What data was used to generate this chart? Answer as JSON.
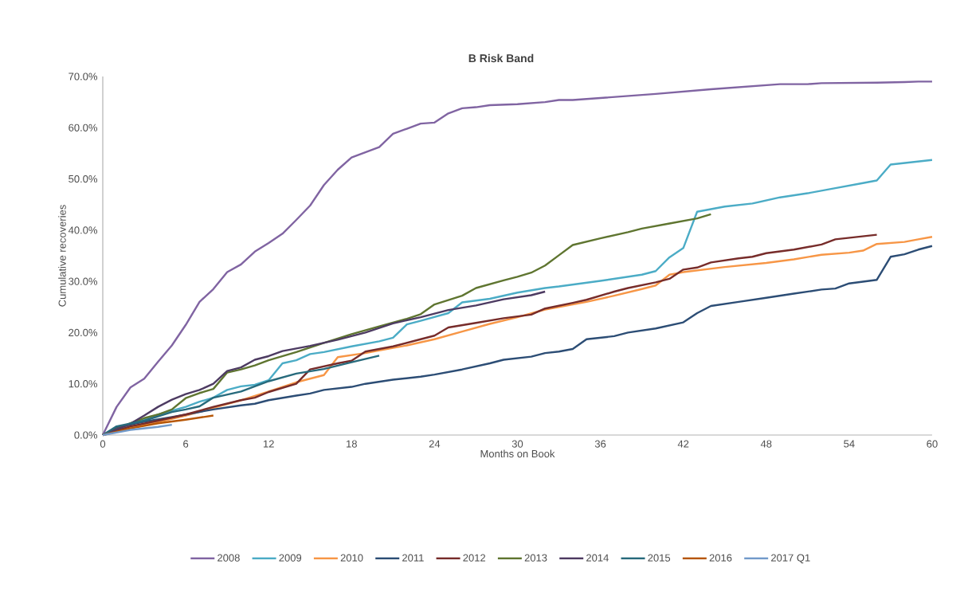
{
  "chart_data": {
    "type": "line",
    "title": "B Risk Band",
    "xlabel": "Months on Book",
    "ylabel": "Cumulative recoveries",
    "xlim": [
      0,
      60
    ],
    "ylim": [
      0,
      70
    ],
    "xticks": [
      0,
      6,
      12,
      18,
      24,
      30,
      36,
      42,
      48,
      54,
      60
    ],
    "yticks": [
      {
        "value": 0,
        "label": "0.0%"
      },
      {
        "value": 10,
        "label": "10.0%"
      },
      {
        "value": 20,
        "label": "20.0%"
      },
      {
        "value": 30,
        "label": "30.0%"
      },
      {
        "value": 40,
        "label": "40.0%"
      },
      {
        "value": 50,
        "label": "50.0%"
      },
      {
        "value": 60,
        "label": "60.0%"
      },
      {
        "value": 70,
        "label": "70.0%"
      }
    ],
    "legend": "bottom",
    "series": [
      {
        "name": "2008",
        "color": "#8064a2",
        "x": [
          0,
          1,
          2,
          3,
          4,
          5,
          6,
          7,
          8,
          9,
          10,
          11,
          12,
          13,
          14,
          15,
          16,
          17,
          18,
          19,
          20,
          21,
          22,
          23,
          24,
          25,
          26,
          27,
          28,
          30,
          32,
          33,
          34,
          40,
          44,
          49,
          51,
          52,
          56,
          58,
          59,
          60
        ],
        "values": [
          0,
          5.5,
          9.3,
          11,
          14.3,
          17.5,
          21.5,
          26,
          28.5,
          31.8,
          33.3,
          35.8,
          37.5,
          39.3,
          42,
          44.8,
          48.8,
          51.8,
          54.2,
          55.2,
          56.2,
          58.8,
          59.8,
          60.8,
          61,
          62.8,
          63.8,
          64,
          64.4,
          64.6,
          65,
          65.4,
          65.4,
          66.6,
          67.5,
          68.5,
          68.5,
          68.7,
          68.8,
          68.9,
          69,
          69
        ]
      },
      {
        "name": "2009",
        "color": "#4bacc6",
        "x": [
          0,
          2,
          4,
          6,
          7,
          8,
          9,
          10,
          11,
          12,
          13,
          14,
          15,
          16,
          18,
          20,
          21,
          22,
          23,
          25,
          26,
          28,
          30,
          32,
          33,
          36,
          39,
          40,
          41,
          42,
          43,
          45,
          47,
          49,
          51,
          53,
          55,
          56,
          57,
          60
        ],
        "values": [
          0,
          2,
          4,
          5.5,
          6.5,
          7.3,
          8.8,
          9.5,
          9.8,
          10.7,
          14,
          14.6,
          15.8,
          16.2,
          17.3,
          18.3,
          19,
          21.6,
          22.3,
          23.8,
          25.9,
          26.6,
          27.8,
          28.7,
          29,
          30.1,
          31.3,
          32,
          34.7,
          36.5,
          43.6,
          44.6,
          45.2,
          46.4,
          47.2,
          48.2,
          49.2,
          49.7,
          52.8,
          53.7
        ]
      },
      {
        "name": "2010",
        "color": "#f79646",
        "x": [
          0,
          2,
          4,
          6,
          8,
          10,
          12,
          14,
          16,
          17,
          19,
          20,
          22,
          24,
          26,
          28,
          30,
          32,
          34,
          35,
          37,
          39,
          40,
          41,
          42,
          45,
          48,
          50,
          52,
          54,
          55,
          56,
          58,
          59,
          60
        ],
        "values": [
          0,
          1.5,
          2.5,
          3.8,
          5.3,
          6.8,
          8.5,
          10.3,
          11.7,
          15.2,
          16,
          16.5,
          17.5,
          18.7,
          20.2,
          21.7,
          23,
          24.5,
          25.5,
          26,
          27.2,
          28.5,
          29.2,
          31.3,
          31.8,
          32.8,
          33.6,
          34.3,
          35.2,
          35.6,
          36,
          37.3,
          37.7,
          38.2,
          38.7
        ]
      },
      {
        "name": "2011",
        "color": "#2c4d75",
        "x": [
          0,
          1,
          3,
          5,
          8,
          10,
          11,
          12,
          14,
          15,
          16,
          18,
          19,
          21,
          23,
          24,
          26,
          27,
          28,
          29,
          31,
          32,
          33,
          34,
          35,
          37,
          38,
          40,
          42,
          43,
          44,
          46,
          48,
          50,
          52,
          53,
          54,
          56,
          57,
          58,
          59,
          60
        ],
        "values": [
          0,
          1.5,
          2.6,
          3.5,
          5,
          5.8,
          6.1,
          6.8,
          7.7,
          8.1,
          8.8,
          9.4,
          10,
          10.8,
          11.4,
          11.8,
          12.8,
          13.4,
          14,
          14.7,
          15.3,
          16,
          16.3,
          16.8,
          18.7,
          19.3,
          20,
          20.8,
          22,
          23.8,
          25.2,
          26,
          26.8,
          27.6,
          28.4,
          28.6,
          29.6,
          30.3,
          34.8,
          35.3,
          36.2,
          36.9
        ]
      },
      {
        "name": "2012",
        "color": "#772c2a",
        "x": [
          0,
          2,
          4,
          6,
          8,
          10,
          11,
          12,
          14,
          15,
          17,
          18,
          19,
          21,
          23,
          24,
          25,
          27,
          29,
          31,
          32,
          34,
          35,
          37,
          38,
          40,
          41,
          42,
          43,
          44,
          46,
          47,
          48,
          50,
          52,
          53,
          55,
          56
        ],
        "values": [
          0,
          1.7,
          2.8,
          4,
          5.5,
          6.8,
          7.3,
          8.4,
          10,
          12.8,
          14,
          14.5,
          16.3,
          17.3,
          18.7,
          19.4,
          21,
          21.9,
          22.8,
          23.5,
          24.7,
          25.8,
          26.4,
          28,
          28.7,
          29.8,
          30.5,
          32.3,
          32.7,
          33.7,
          34.5,
          34.8,
          35.5,
          36.2,
          37.2,
          38.2,
          38.8,
          39.1
        ]
      },
      {
        "name": "2013",
        "color": "#5f7530",
        "x": [
          0,
          2,
          3,
          4,
          5,
          6,
          7,
          8,
          9,
          10,
          11,
          12,
          14,
          16,
          18,
          20,
          22,
          23,
          24,
          26,
          27,
          29,
          30,
          31,
          32,
          33,
          34,
          36,
          38,
          39,
          41,
          43,
          44
        ],
        "values": [
          0,
          2.3,
          3.3,
          4,
          5,
          7.2,
          8.2,
          9,
          12.2,
          12.8,
          13.6,
          14.6,
          16.2,
          18,
          19.7,
          21.2,
          22.7,
          23.6,
          25.5,
          27.2,
          28.7,
          30.2,
          30.9,
          31.7,
          33.1,
          35.1,
          37.1,
          38.4,
          39.6,
          40.3,
          41.3,
          42.3,
          43.1
        ]
      },
      {
        "name": "2014",
        "color": "#4d3b62",
        "x": [
          0,
          2,
          3,
          4,
          5,
          6,
          7,
          8,
          9,
          10,
          11,
          12,
          13,
          15,
          17,
          19,
          21,
          23,
          25,
          27,
          29,
          31,
          32
        ],
        "values": [
          0,
          2.2,
          3.8,
          5.5,
          6.9,
          8,
          8.8,
          10,
          12.5,
          13.2,
          14.7,
          15.4,
          16.4,
          17.4,
          18.6,
          20,
          21.8,
          23,
          24.4,
          25.3,
          26.5,
          27.3,
          28
        ]
      },
      {
        "name": "2015",
        "color": "#276a7c",
        "x": [
          0,
          1,
          3,
          5,
          6,
          7,
          8,
          10,
          12,
          14,
          16,
          18,
          20
        ],
        "values": [
          0,
          1.7,
          2.8,
          4.5,
          5,
          5.6,
          7.3,
          8.5,
          10.5,
          12,
          12.9,
          14.2,
          15.5
        ]
      },
      {
        "name": "2016",
        "color": "#b65708",
        "x": [
          0,
          2,
          4,
          6,
          8
        ],
        "values": [
          0,
          1.3,
          2.3,
          3,
          3.8
        ]
      },
      {
        "name": "2017 Q1",
        "color": "#729aca",
        "x": [
          0,
          2,
          4,
          5
        ],
        "values": [
          0,
          1,
          1.6,
          2
        ]
      }
    ]
  }
}
